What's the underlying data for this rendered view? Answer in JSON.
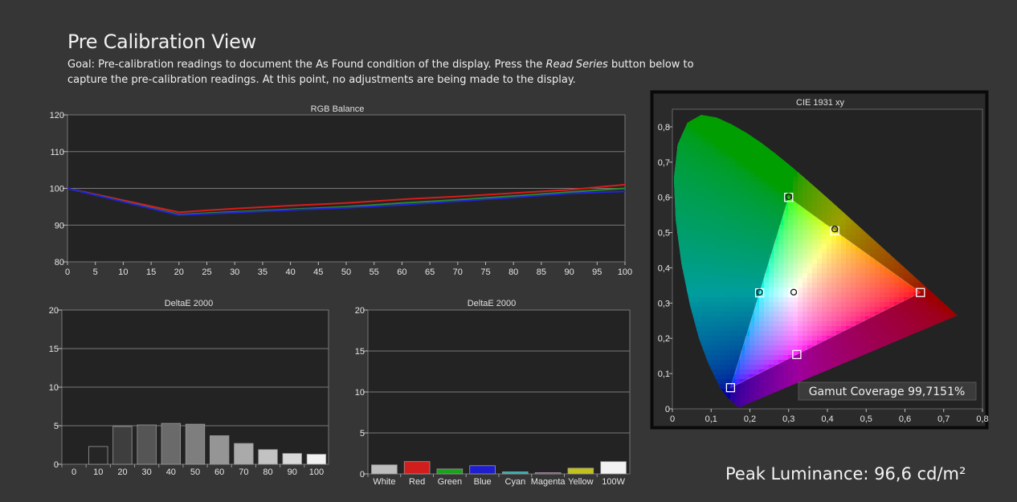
{
  "page": {
    "title": "Pre Calibration View",
    "goal_prefix": "Goal: Pre-calibration readings to document the As Found condition of the display. Press the ",
    "goal_button_name": "Read Series",
    "goal_suffix": " button below to capture the pre-calibration readings. At this point, no adjustments are being made to the display.",
    "peak_luminance": "Peak Luminance: 96,6 cd/m²"
  },
  "colors": {
    "background": "#363636",
    "plot_bg": "#232323",
    "red": "#d81c1c",
    "green": "#2a8a2a",
    "blue": "#2323d8"
  },
  "chart_data": [
    {
      "type": "line",
      "title": "RGB Balance",
      "x": [
        0,
        20,
        30,
        40,
        50,
        60,
        70,
        80,
        90,
        100
      ],
      "xticks": [
        0,
        5,
        10,
        15,
        20,
        25,
        30,
        35,
        40,
        45,
        50,
        55,
        60,
        65,
        70,
        75,
        80,
        85,
        90,
        95,
        100
      ],
      "ylim": [
        80,
        120
      ],
      "yticks": [
        80,
        90,
        100,
        110,
        120
      ],
      "grid": true,
      "series": [
        {
          "color": "#d81c1c",
          "values": [
            100,
            93.5,
            94.5,
            95.3,
            96.0,
            97.0,
            97.8,
            98.7,
            99.6,
            101.0
          ]
        },
        {
          "color": "#2a8a2a",
          "values": [
            100,
            92.9,
            93.6,
            94.3,
            95.0,
            96.0,
            96.9,
            97.9,
            99.0,
            100.0
          ]
        },
        {
          "color": "#2323d8",
          "values": [
            100,
            92.7,
            93.4,
            94.1,
            94.7,
            95.5,
            96.5,
            97.5,
            98.6,
            99.2
          ]
        }
      ]
    },
    {
      "type": "bar",
      "title": "DeltaE 2000",
      "categories": [
        "0",
        "10",
        "20",
        "30",
        "40",
        "50",
        "60",
        "70",
        "80",
        "90",
        "100"
      ],
      "values": [
        0,
        2.3,
        4.9,
        5.1,
        5.3,
        5.2,
        3.7,
        2.7,
        1.9,
        1.4,
        1.3
      ],
      "bar_colors": [
        "#000000",
        "#262626",
        "#3e3e3e",
        "#555555",
        "#6a6a6a",
        "#7e7e7e",
        "#959595",
        "#aaaaaa",
        "#c2c2c2",
        "#d8d8d8",
        "#f2f2f2"
      ],
      "ylim": [
        0,
        20
      ],
      "yticks": [
        0,
        5,
        10,
        15,
        20
      ],
      "grid": true
    },
    {
      "type": "bar",
      "title": "DeltaE 2000",
      "categories": [
        "White",
        "Red",
        "Green",
        "Blue",
        "Cyan",
        "Magenta",
        "Yellow",
        "100W"
      ],
      "values": [
        1.1,
        1.5,
        0.6,
        1.0,
        0.25,
        0.15,
        0.7,
        1.5
      ],
      "bar_colors": [
        "#bdbdbd",
        "#d21d1d",
        "#1aa21a",
        "#1e1ecf",
        "#20b6b6",
        "#c21ec2",
        "#c2c21a",
        "#f2f2f2"
      ],
      "ylim": [
        0,
        20
      ],
      "yticks": [
        0,
        5,
        10,
        15,
        20
      ],
      "grid": true
    },
    {
      "type": "scatter",
      "title": "CIE 1931 xy",
      "xlim": [
        0,
        0.8
      ],
      "ylim": [
        0,
        0.85
      ],
      "xticks": [
        "0",
        "0,1",
        "0,2",
        "0,3",
        "0,4",
        "0,5",
        "0,6",
        "0,7",
        "0,8"
      ],
      "yticks": [
        "0",
        "0,1",
        "0,2",
        "0,3",
        "0,4",
        "0,5",
        "0,6",
        "0,7",
        "0,8"
      ],
      "gamut_coverage": "Gamut Coverage 99,7151%",
      "target_triangle": [
        [
          0.64,
          0.33
        ],
        [
          0.3,
          0.6
        ],
        [
          0.15,
          0.06
        ]
      ],
      "targets": [
        {
          "x": 0.64,
          "y": 0.33
        },
        {
          "x": 0.3,
          "y": 0.6
        },
        {
          "x": 0.15,
          "y": 0.06
        },
        {
          "x": 0.225,
          "y": 0.329
        },
        {
          "x": 0.321,
          "y": 0.154
        },
        {
          "x": 0.419,
          "y": 0.505
        },
        {
          "x": 0.3127,
          "y": 0.329
        }
      ],
      "measured": [
        {
          "x": 0.225,
          "y": 0.331
        },
        {
          "x": 0.419,
          "y": 0.51
        },
        {
          "x": 0.313,
          "y": 0.331
        },
        {
          "x": 0.3,
          "y": 0.602
        }
      ]
    }
  ]
}
